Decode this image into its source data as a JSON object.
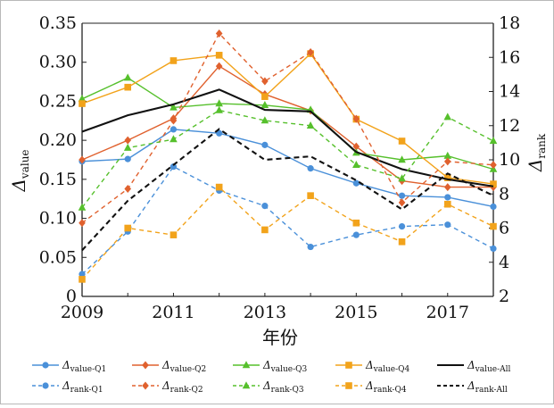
{
  "chart_data": {
    "type": "line",
    "x": [
      2009,
      2010,
      2011,
      2012,
      2013,
      2014,
      2015,
      2016,
      2017,
      2018
    ],
    "xticks": [
      "2009",
      "2011",
      "2013",
      "2015",
      "2017"
    ],
    "xlabel": "年份",
    "ylabel_left": {
      "main": "Δ",
      "sub": "value"
    },
    "ylabel_right": {
      "main": "Δ",
      "sub": "rank"
    },
    "ylim_left": [
      0,
      0.35
    ],
    "yticks_left": [
      "0",
      "0.05",
      "0.10",
      "0.15",
      "0.20",
      "0.25",
      "0.30",
      "0.35"
    ],
    "ylim_right": [
      2,
      18
    ],
    "yticks_right": [
      "2",
      "4",
      "6",
      "8",
      "10",
      "12",
      "14",
      "16",
      "18"
    ],
    "grid": false,
    "legend_position": "bottom",
    "series": [
      {
        "name": "Δvalue-Q1",
        "main": "Δ",
        "sub": "value-Q1",
        "axis": "left",
        "style": "solid",
        "marker": "circle",
        "color": "#4a90d9",
        "values": [
          0.173,
          0.176,
          0.214,
          0.209,
          0.194,
          0.164,
          0.145,
          0.129,
          0.127,
          0.115
        ]
      },
      {
        "name": "Δvalue-Q2",
        "main": "Δ",
        "sub": "value-Q2",
        "axis": "left",
        "style": "solid",
        "marker": "diamond",
        "color": "#e0612e",
        "values": [
          0.175,
          0.2,
          0.228,
          0.295,
          0.259,
          0.238,
          0.192,
          0.148,
          0.14,
          0.14
        ]
      },
      {
        "name": "Δvalue-Q3",
        "main": "Δ",
        "sub": "value-Q3",
        "axis": "left",
        "style": "solid",
        "marker": "triangle",
        "color": "#56c02c",
        "values": [
          0.253,
          0.28,
          0.242,
          0.247,
          0.245,
          0.239,
          0.184,
          0.175,
          0.18,
          0.163
        ]
      },
      {
        "name": "Δvalue-Q4",
        "main": "Δ",
        "sub": "value-Q4",
        "axis": "left",
        "style": "solid",
        "marker": "square",
        "color": "#f2a31b",
        "values": [
          0.247,
          0.268,
          0.302,
          0.309,
          0.256,
          0.311,
          0.227,
          0.199,
          0.152,
          0.144
        ]
      },
      {
        "name": "Δvalue-All",
        "main": "Δ",
        "sub": "value-All",
        "axis": "left",
        "style": "solid",
        "marker": "none",
        "color": "#111111",
        "values": [
          0.211,
          0.232,
          0.246,
          0.265,
          0.239,
          0.237,
          0.185,
          0.163,
          0.15,
          0.141
        ]
      },
      {
        "name": "Δrank-Q1",
        "main": "Δ",
        "sub": "rank-Q1",
        "axis": "right",
        "style": "dashed",
        "marker": "circle",
        "color": "#4a90d9",
        "values": [
          3.3,
          5.8,
          9.6,
          8.2,
          7.3,
          4.9,
          5.6,
          6.1,
          6.2,
          4.8
        ]
      },
      {
        "name": "Δrank-Q2",
        "main": "Δ",
        "sub": "rank-Q2",
        "axis": "right",
        "style": "dashed",
        "marker": "diamond",
        "color": "#e0612e",
        "values": [
          6.3,
          8.3,
          12.3,
          17.4,
          14.6,
          16.3,
          12.4,
          7.5,
          9.9,
          9.7
        ]
      },
      {
        "name": "Δrank-Q3",
        "main": "Δ",
        "sub": "rank-Q3",
        "axis": "right",
        "style": "dashed",
        "marker": "triangle",
        "color": "#56c02c",
        "values": [
          7.2,
          10.7,
          11.2,
          12.9,
          12.3,
          12.0,
          9.7,
          8.9,
          12.5,
          11.1
        ]
      },
      {
        "name": "Δrank-Q4",
        "main": "Δ",
        "sub": "rank-Q4",
        "axis": "right",
        "style": "dashed",
        "marker": "square",
        "color": "#f2a31b",
        "values": [
          3.0,
          6.0,
          5.6,
          8.4,
          5.9,
          7.9,
          6.3,
          5.2,
          7.4,
          6.1
        ]
      },
      {
        "name": "Δrank-All",
        "main": "Δ",
        "sub": "rank-All",
        "axis": "right",
        "style": "dashed",
        "marker": "none",
        "color": "#111111",
        "values": [
          4.7,
          7.6,
          9.7,
          11.8,
          10.0,
          10.2,
          8.8,
          7.1,
          9.2,
          7.9
        ]
      }
    ]
  }
}
